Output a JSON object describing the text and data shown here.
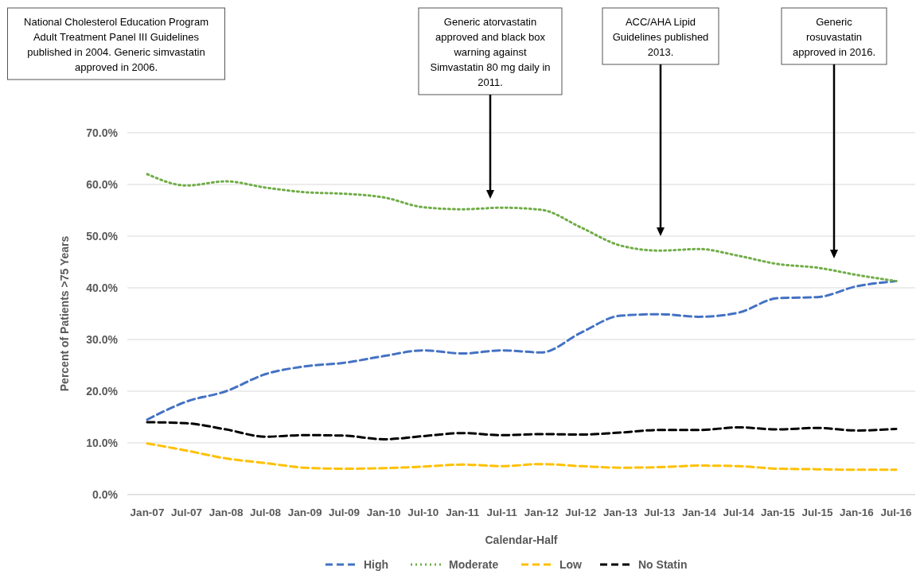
{
  "chart_data": {
    "type": "line",
    "xlabel": "Calendar-Half",
    "ylabel": "Percent of Patients >75 Years",
    "categories": [
      "Jan-07",
      "Jul-07",
      "Jan-08",
      "Jul-08",
      "Jan-09",
      "Jul-09",
      "Jan-10",
      "Jul-10",
      "Jan-11",
      "Jul-11",
      "Jan-12",
      "Jul-12",
      "Jan-13",
      "Jul-13",
      "Jan-14",
      "Jul-14",
      "Jan-15",
      "Jul-15",
      "Jan-16",
      "Jul-16"
    ],
    "series": [
      {
        "name": "High",
        "color": "#4472c4",
        "line_style": "dashed",
        "values": [
          14.5,
          18,
          20,
          23.3,
          24.8,
          25.5,
          26.8,
          27.9,
          27.3,
          27.9,
          27.5,
          31.3,
          34.6,
          34.9,
          34.4,
          35.2,
          38,
          38.2,
          40.3,
          41.3
        ]
      },
      {
        "name": "Moderate",
        "color": "#70ad47",
        "line_style": "dotted",
        "values": [
          62,
          59.8,
          60.6,
          59.4,
          58.5,
          58.2,
          57.5,
          55.6,
          55.2,
          55.5,
          55.1,
          51.7,
          48.2,
          47.2,
          47.5,
          46.2,
          44.6,
          43.9,
          42.5,
          41.3
        ]
      },
      {
        "name": "Low",
        "color": "#ffc000",
        "line_style": "dashed",
        "values": [
          9.9,
          8.5,
          7,
          6.1,
          5.2,
          5,
          5.1,
          5.4,
          5.8,
          5.5,
          5.9,
          5.5,
          5.2,
          5.3,
          5.6,
          5.5,
          5,
          4.9,
          4.8,
          4.8
        ]
      },
      {
        "name": "No Statin",
        "color": "#000000",
        "line_style": "dashed",
        "values": [
          14,
          13.8,
          12.6,
          11.2,
          11.5,
          11.4,
          10.7,
          11.3,
          11.9,
          11.5,
          11.7,
          11.6,
          12,
          12.5,
          12.5,
          13,
          12.6,
          12.9,
          12.4,
          12.7
        ]
      }
    ],
    "ylim": [
      0,
      70
    ],
    "yticks": [
      {
        "value": 0,
        "label": "0.0%"
      },
      {
        "value": 10,
        "label": "10.0%"
      },
      {
        "value": 20,
        "label": "20.0%"
      },
      {
        "value": 30,
        "label": "30.0%"
      },
      {
        "value": 40,
        "label": "40.0%"
      },
      {
        "value": 50,
        "label": "50.0%"
      },
      {
        "value": 60,
        "label": "60.0%"
      },
      {
        "value": 70,
        "label": "70.0%"
      }
    ],
    "grid": "y",
    "legend": "bottom",
    "marker": "none",
    "annotations": [
      "National Cholesterol Education Program Adult Treatment Panel III Guidelines published in 2004. Generic simvastatin approved in 2006.",
      "Generic atorvastatin approved and black box warning against Simvastatin 80 mg daily in 2011.",
      "ACC/AHA Lipid Guidelines published 2013.",
      "Generic rosuvastatin approved in 2016."
    ]
  }
}
